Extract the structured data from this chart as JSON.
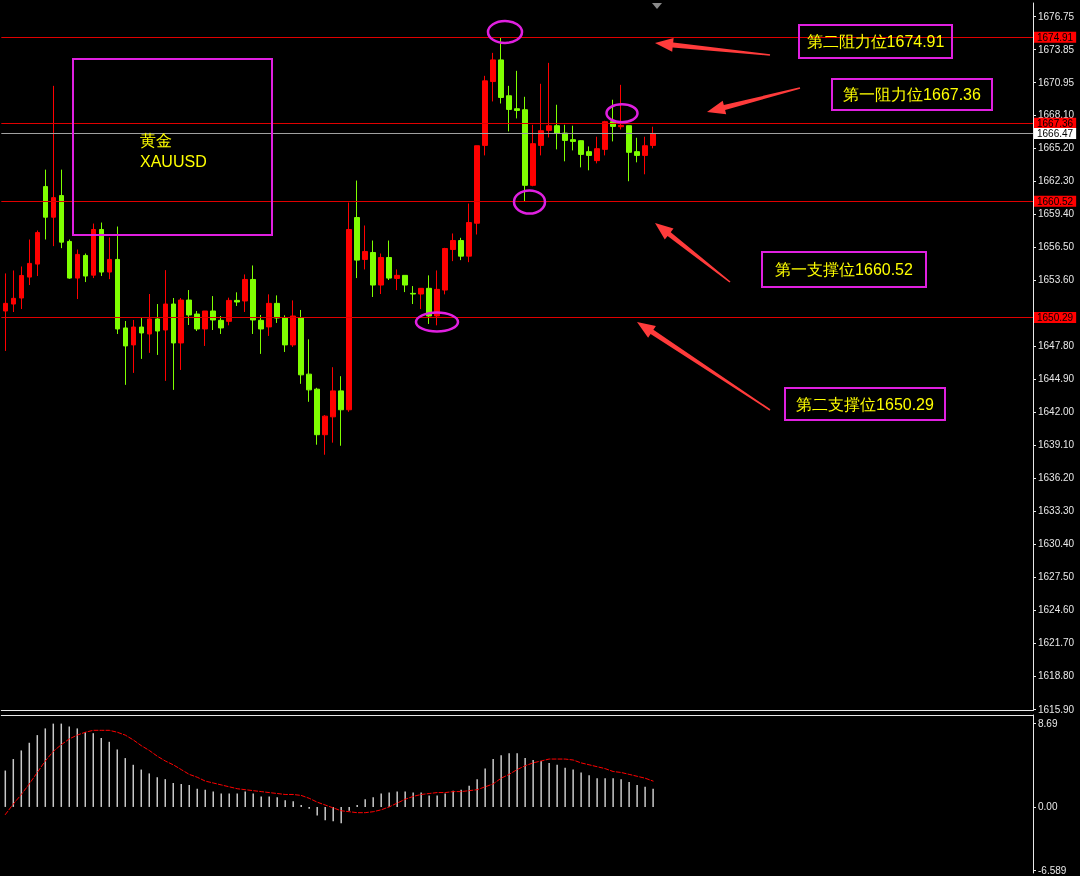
{
  "chart_data": [
    {
      "type": "candlestick",
      "categories": [
        null,
        null,
        null,
        null,
        null,
        null,
        null,
        null,
        null,
        null,
        null,
        null,
        null,
        null,
        null,
        null,
        null,
        null,
        null,
        null,
        null,
        null,
        null,
        null,
        null,
        null,
        null,
        null,
        null,
        null,
        null,
        null,
        null,
        null,
        null,
        null,
        null,
        null,
        null,
        null,
        null,
        null,
        null,
        null,
        null,
        null,
        null,
        null,
        null,
        null,
        null,
        null,
        null,
        null,
        null,
        null,
        null,
        null,
        null,
        null,
        null,
        null,
        null,
        null,
        null,
        null,
        null,
        null,
        null,
        null,
        null,
        null,
        null,
        null,
        null,
        null,
        null,
        null,
        null,
        null,
        null,
        null,
        null,
        null,
        null,
        null,
        null,
        null,
        null,
        null,
        null,
        null,
        null,
        null,
        null,
        null,
        null,
        null,
        null,
        null,
        null,
        null,
        null,
        null,
        null,
        null,
        null,
        null,
        null,
        null,
        null,
        null,
        null,
        null,
        null,
        null,
        null,
        null,
        null,
        null,
        null,
        null,
        null,
        null,
        null,
        null,
        null,
        null,
        null
      ],
      "ohlc": [
        [
          1650.87,
          1654.17,
          1647.36,
          1651.54
        ],
        [
          1651.48,
          1654.43,
          1650.78,
          1651.98
        ],
        [
          1652.01,
          1654.78,
          1651.04,
          1653.99
        ],
        [
          1653.85,
          1657.15,
          1653.15,
          1655.05
        ],
        [
          1654.99,
          1657.94,
          1653.94,
          1657.76
        ],
        [
          1661.8,
          1663.29,
          1657.15,
          1659.11
        ],
        [
          1659.11,
          1670.65,
          1656.57,
          1660.83
        ],
        [
          1661.01,
          1663.29,
          1656.39,
          1656.92
        ],
        [
          1656.98,
          1657.15,
          1653.7,
          1653.76
        ],
        [
          1653.76,
          1656.27,
          1651.92,
          1655.84
        ],
        [
          1655.75,
          1655.92,
          1653.41,
          1653.94
        ],
        [
          1654.02,
          1658.55,
          1653.76,
          1658.03
        ],
        [
          1658.03,
          1658.64,
          1653.94,
          1654.29
        ],
        [
          1654.29,
          1657.33,
          1653.67,
          1655.4
        ],
        [
          1655.4,
          1658.29,
          1648.85,
          1649.29
        ],
        [
          1649.38,
          1649.99,
          1644.38,
          1647.8
        ],
        [
          1647.89,
          1650.08,
          1645.43,
          1649.46
        ],
        [
          1649.46,
          1650.25,
          1646.66,
          1648.94
        ],
        [
          1648.85,
          1652.36,
          1647.19,
          1650.17
        ],
        [
          1650.17,
          1651.48,
          1647.01,
          1649.11
        ],
        [
          1649.2,
          1654.46,
          1644.73,
          1651.48
        ],
        [
          1651.48,
          1652.01,
          1643.94,
          1648.06
        ],
        [
          1648.06,
          1652.01,
          1645.69,
          1651.83
        ],
        [
          1651.83,
          1652.71,
          1649.64,
          1650.52
        ],
        [
          1650.6,
          1650.87,
          1649.11,
          1649.29
        ],
        [
          1649.29,
          1650.87,
          1647.8,
          1650.87
        ],
        [
          1650.87,
          1652.18,
          1649.2,
          1650.08
        ],
        [
          1650.05,
          1650.43,
          1648.85,
          1649.38
        ],
        [
          1649.96,
          1652.04,
          1649.61,
          1651.8
        ],
        [
          1651.8,
          1652.51,
          1651.31,
          1651.66
        ],
        [
          1651.75,
          1654.08,
          1650.78,
          1653.64
        ],
        [
          1653.64,
          1654.87,
          1648.85,
          1650.08
        ],
        [
          1650.05,
          1650.52,
          1647.1,
          1649.29
        ],
        [
          1649.47,
          1652.33,
          1648.68,
          1651.54
        ],
        [
          1651.54,
          1652.24,
          1649.82,
          1650.25
        ],
        [
          1650.25,
          1650.49,
          1647.27,
          1647.89
        ],
        [
          1647.89,
          1651.8,
          1647.71,
          1650.43
        ],
        [
          1650.25,
          1650.96,
          1644.47,
          1645.26
        ],
        [
          1645.32,
          1648.38,
          1642.89,
          1643.94
        ],
        [
          1644.0,
          1644.12,
          1639.12,
          1640.0
        ],
        [
          1640.0,
          1641.72,
          1638.24,
          1641.63
        ],
        [
          1641.57,
          1645.93,
          1639.3,
          1643.85
        ],
        [
          1643.85,
          1645.14,
          1639.03,
          1642.19
        ],
        [
          1642.19,
          1660.4,
          1642.01,
          1658.03
        ],
        [
          1659.08,
          1662.33,
          1653.76,
          1655.34
        ],
        [
          1655.4,
          1658.38,
          1654.52,
          1656.1
        ],
        [
          1656.01,
          1657.06,
          1652.1,
          1653.15
        ],
        [
          1653.15,
          1655.92,
          1652.36,
          1655.57
        ],
        [
          1655.57,
          1657.06,
          1653.59,
          1653.76
        ],
        [
          1653.73,
          1654.52,
          1652.71,
          1654.0
        ],
        [
          1654.0,
          1654.0,
          1652.53,
          1653.15
        ],
        [
          1652.42,
          1653.06,
          1651.48,
          1652.36
        ],
        [
          1652.36,
          1652.89,
          1651.04,
          1652.86
        ],
        [
          1652.86,
          1654.0,
          1649.73,
          1650.43
        ],
        [
          1650.43,
          1654.43,
          1649.61,
          1652.77
        ],
        [
          1652.71,
          1656.42,
          1652.33,
          1656.36
        ],
        [
          1656.27,
          1657.68,
          1655.25,
          1657.06
        ],
        [
          1657.06,
          1657.3,
          1655.34,
          1655.69
        ],
        [
          1655.69,
          1660.31,
          1655.16,
          1658.64
        ],
        [
          1658.58,
          1665.39,
          1657.59,
          1665.39
        ],
        [
          1665.42,
          1671.53,
          1664.54,
          1671.09
        ],
        [
          1671.03,
          1673.55,
          1669.28,
          1672.93
        ],
        [
          1672.93,
          1674.91,
          1669.1,
          1669.63
        ],
        [
          1669.78,
          1670.65,
          1666.65,
          1668.58
        ],
        [
          1668.64,
          1671.97,
          1667.79,
          1668.49
        ],
        [
          1668.55,
          1669.69,
          1660.52,
          1661.91
        ],
        [
          1661.91,
          1667.23,
          1661.83,
          1665.57
        ],
        [
          1665.42,
          1670.83,
          1664.54,
          1666.71
        ],
        [
          1666.74,
          1672.67,
          1666.12,
          1667.15
        ],
        [
          1667.15,
          1668.99,
          1665.07,
          1666.5
        ],
        [
          1666.5,
          1667.23,
          1664.02,
          1665.86
        ],
        [
          1665.92,
          1667.15,
          1664.98,
          1665.77
        ],
        [
          1665.83,
          1665.86,
          1663.49,
          1664.63
        ],
        [
          1664.87,
          1665.33,
          1663.23,
          1664.54
        ],
        [
          1664.08,
          1666.18,
          1663.84,
          1665.13
        ],
        [
          1665.07,
          1667.58,
          1664.54,
          1667.5
        ],
        [
          1667.5,
          1669.43,
          1665.77,
          1667.09
        ],
        [
          1667.06,
          1670.74,
          1666.82,
          1667.18
        ],
        [
          1667.15,
          1667.15,
          1662.27,
          1664.81
        ],
        [
          1664.87,
          1666.09,
          1663.93,
          1664.54
        ],
        [
          1664.54,
          1666.18,
          1662.88,
          1665.39
        ],
        [
          1665.42,
          1667.06,
          1665.16,
          1666.47
        ],
        null,
        null,
        null,
        null,
        null,
        null,
        null,
        null,
        null,
        null,
        null,
        null,
        null,
        null,
        null,
        null,
        null,
        null,
        null,
        null,
        null,
        null,
        null,
        null,
        null,
        null,
        null,
        null,
        null,
        null,
        null,
        null,
        null,
        null,
        null,
        null,
        null,
        null,
        null,
        null,
        null,
        null,
        null,
        null,
        null,
        null,
        null
      ],
      "colors": [
        "#ff0000",
        "#ff0000",
        "#ff0000",
        "#ff0000",
        "#ff0000",
        "#7fff00",
        "#ff0000",
        "#7fff00",
        "#7fff00",
        "#ff0000",
        "#7fff00",
        "#ff0000",
        "#7fff00",
        "#ff0000",
        "#7fff00",
        "#7fff00",
        "#ff0000",
        "#7fff00",
        "#ff0000",
        "#7fff00",
        "#ff0000",
        "#7fff00",
        "#ff0000",
        "#7fff00",
        "#7fff00",
        "#ff0000",
        "#7fff00",
        "#7fff00",
        "#ff0000",
        "#7fff00",
        "#ff0000",
        "#7fff00",
        "#7fff00",
        "#ff0000",
        "#7fff00",
        "#7fff00",
        "#ff0000",
        "#7fff00",
        "#7fff00",
        "#7fff00",
        "#ff0000",
        "#ff0000",
        "#7fff00",
        "#ff0000",
        "#7fff00",
        "#ff0000",
        "#7fff00",
        "#ff0000",
        "#7fff00",
        "#ff0000",
        "#7fff00",
        "#7fff00",
        "#ff0000",
        "#7fff00",
        "#ff0000",
        "#ff0000",
        "#ff0000",
        "#7fff00",
        "#ff0000",
        "#ff0000",
        "#ff0000",
        "#ff0000",
        "#7fff00",
        "#7fff00",
        "#7fff00",
        "#7fff00",
        "#ff0000",
        "#ff0000",
        "#ff0000",
        "#7fff00",
        "#7fff00",
        "#7fff00",
        "#7fff00",
        "#7fff00",
        "#ff0000",
        "#ff0000",
        "#7fff00",
        "#ff0000",
        "#7fff00",
        "#7fff00",
        "#ff0000",
        "#ff0000",
        null,
        null,
        null,
        null,
        null,
        null,
        null,
        null,
        null,
        null,
        null,
        null,
        null,
        null,
        null,
        null,
        null,
        null,
        null,
        null,
        null,
        null,
        null,
        null,
        null,
        null,
        null,
        null,
        null,
        null,
        null,
        null,
        null,
        null,
        null,
        null,
        null,
        null,
        null,
        null,
        null,
        null,
        null,
        null,
        null,
        null,
        null
      ],
      "ylim": [
        1615.77,
        1677.93
      ],
      "yticks": [
        1676.75,
        1673.85,
        1670.95,
        {
          "value": 1668.1,
          "label": "1668.10"
        },
        {
          "value": 1665.2,
          "label": "1665.20"
        },
        {
          "value": 1662.3,
          "label": "1662.30"
        },
        {
          "value": 1659.4,
          "label": "1659.40"
        },
        {
          "value": 1656.5,
          "label": "1656.50"
        },
        {
          "value": 1653.6,
          "label": "1653.60"
        },
        {
          "value": 1650.7,
          "label": null
        },
        {
          "value": 1647.8,
          "label": "1647.80"
        },
        {
          "value": 1644.9,
          "label": "1644.90"
        },
        {
          "value": 1642,
          "label": "1642.00"
        },
        {
          "value": 1639.1,
          "label": "1639.10"
        },
        {
          "value": 1636.2,
          "label": "1636.20"
        },
        {
          "value": 1633.3,
          "label": "1633.30"
        },
        {
          "value": 1630.4,
          "label": "1630.40"
        },
        {
          "value": 1627.5,
          "label": "1627.50"
        },
        {
          "value": 1624.6,
          "label": "1624.60"
        },
        {
          "value": 1621.7,
          "label": "1621.70"
        },
        {
          "value": 1618.8,
          "label": "1618.80"
        },
        {
          "value": 1615.9,
          "label": "1615.90"
        }
      ],
      "tick_labels": "y",
      "ref_lines": [
        {
          "axis": "y",
          "value": 1674.91,
          "label": "1674.91",
          "color": "#e00000"
        },
        {
          "axis": "y",
          "value": 1667.36,
          "label": "1667.36",
          "color": "#e00000"
        },
        {
          "axis": "y",
          "value": 1666.47,
          "label": "1666.47",
          "color": "#a0a0a0"
        },
        {
          "axis": "y",
          "value": 1660.52,
          "label": "1660.52",
          "color": "#e00000"
        },
        {
          "axis": "y",
          "value": 1650.29,
          "label": "1650.29",
          "color": "#e00000"
        }
      ],
      "annotations": [
        "黄金\nXAUUSD",
        "第二阻力位1674.91",
        "第一阻力位1667.36",
        "第一支撑位1660.52",
        "第二支撑位1650.29"
      ]
    },
    {
      "type": "bar",
      "categories": [
        null,
        null,
        null,
        null,
        null,
        null,
        null,
        null,
        null,
        null,
        null,
        null,
        null,
        null,
        null,
        null,
        null,
        null,
        null,
        null,
        null,
        null,
        null,
        null,
        null,
        null,
        null,
        null,
        null,
        null,
        null,
        null,
        null,
        null,
        null,
        null,
        null,
        null,
        null,
        null,
        null,
        null,
        null,
        null,
        null,
        null,
        null,
        null,
        null,
        null,
        null,
        null,
        null,
        null,
        null,
        null,
        null,
        null,
        null,
        null,
        null,
        null,
        null,
        null,
        null,
        null,
        null,
        null,
        null,
        null,
        null,
        null,
        null,
        null,
        null,
        null,
        null,
        null,
        null,
        null,
        null,
        null,
        null,
        null,
        null,
        null,
        null,
        null,
        null,
        null,
        null,
        null,
        null,
        null,
        null,
        null,
        null,
        null,
        null,
        null,
        null,
        null,
        null,
        null,
        null,
        null,
        null,
        null,
        null,
        null,
        null,
        null,
        null,
        null,
        null,
        null,
        null,
        null,
        null,
        null,
        null,
        null,
        null,
        null,
        null,
        null,
        null,
        null,
        null
      ],
      "series": [
        {
          "type": "bar",
          "color": "#c8c8c8",
          "values": [
            3.8,
            5.0,
            5.9,
            6.7,
            7.5,
            8.2,
            8.7,
            8.7,
            8.4,
            8.2,
            7.8,
            7.7,
            7.2,
            6.8,
            6.0,
            5.1,
            4.4,
            3.9,
            3.5,
            3.1,
            2.9,
            2.5,
            2.4,
            2.3,
            1.9,
            1.8,
            1.6,
            1.4,
            1.4,
            1.4,
            1.6,
            1.4,
            1.1,
            1.1,
            1.0,
            0.7,
            0.6,
            0.2,
            -0.2,
            -0.9,
            -1.4,
            -1.5,
            -1.7,
            -0.4,
            0.2,
            0.8,
            1.0,
            1.4,
            1.5,
            1.6,
            1.6,
            1.5,
            1.5,
            1.2,
            1.2,
            1.4,
            1.7,
            1.8,
            2.2,
            2.9,
            4.0,
            5.0,
            5.4,
            5.6,
            5.6,
            5.1,
            4.9,
            4.8,
            4.6,
            4.4,
            4.1,
            3.9,
            3.6,
            3.3,
            3.0,
            3.0,
            3.0,
            2.9,
            2.6,
            2.3,
            2.1,
            1.9,
            null,
            null,
            null,
            null,
            null,
            null,
            null,
            null,
            null,
            null,
            null,
            null,
            null,
            null,
            null,
            null,
            null,
            null,
            null,
            null,
            null,
            null,
            null,
            null,
            null,
            null,
            null,
            null,
            null,
            null,
            null,
            null,
            null,
            null,
            null,
            null,
            null,
            null,
            null,
            null,
            null,
            null,
            null,
            null,
            null,
            null,
            null
          ]
        },
        {
          "type": "line",
          "color": "#ff0000",
          "values": [
            -0.8,
            0.3,
            1.3,
            2.4,
            3.6,
            4.8,
            5.8,
            6.5,
            7.1,
            7.5,
            7.8,
            8.0,
            8.0,
            8.0,
            7.8,
            7.5,
            7.0,
            6.4,
            5.9,
            5.3,
            4.8,
            4.4,
            3.9,
            3.4,
            3.1,
            2.7,
            2.5,
            2.3,
            2.1,
            1.9,
            1.8,
            1.7,
            1.6,
            1.5,
            1.4,
            1.3,
            1.3,
            1.2,
            0.9,
            0.5,
            0.2,
            -0.1,
            -0.4,
            -0.5,
            -0.6,
            -0.6,
            -0.5,
            -0.3,
            0.0,
            0.4,
            0.8,
            1.1,
            1.3,
            1.4,
            1.5,
            1.5,
            1.6,
            1.6,
            1.7,
            1.8,
            2.1,
            2.4,
            3.0,
            3.4,
            3.9,
            4.3,
            4.6,
            4.8,
            5.0,
            5.0,
            5.0,
            4.9,
            4.6,
            4.4,
            4.2,
            4.0,
            3.7,
            3.6,
            3.4,
            3.2,
            3.0,
            2.7,
            null,
            null,
            null,
            null,
            null,
            null,
            null,
            null,
            null,
            null,
            null,
            null,
            null,
            null,
            null,
            null,
            null,
            null,
            null,
            null,
            null,
            null,
            null,
            null,
            null,
            null,
            null,
            null,
            null,
            null,
            null,
            null,
            null,
            null,
            null,
            null,
            null,
            null,
            null,
            null,
            null,
            null,
            null,
            null,
            null,
            null,
            null
          ]
        }
      ],
      "line_style": "dashed",
      "ylim": [
        -6.9,
        9.6
      ],
      "yticks": [
        8.69,
        {
          "value": 0,
          "label": "0.00"
        },
        -6.589
      ],
      "tick_labels": "y"
    }
  ]
}
